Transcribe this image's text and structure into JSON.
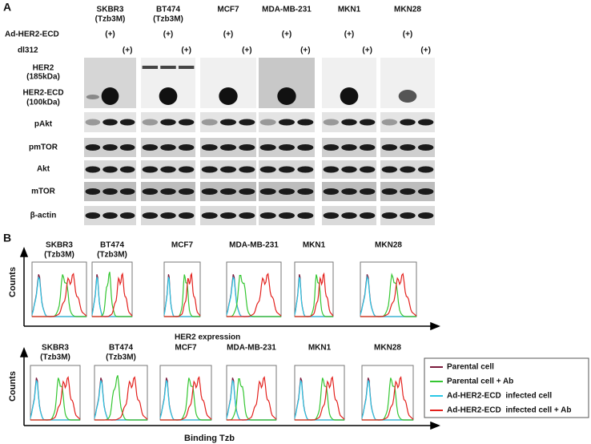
{
  "panel_a": {
    "label": "A",
    "cell_lines": [
      {
        "name": "SKBR3",
        "note": "(Tzb3M)"
      },
      {
        "name": "BT474",
        "note": "(Tzb3M)"
      },
      {
        "name": "MCF7"
      },
      {
        "name": "MDA-MB-231"
      },
      {
        "name": "MKN1"
      },
      {
        "name": "MKN28"
      }
    ],
    "treatments": [
      "Ad-HER2-ECD",
      "dl312"
    ],
    "plus": "(+)",
    "blots": [
      {
        "name": "HER2",
        "note": "(185kDa)"
      },
      {
        "name": "HER2-ECD",
        "note": "(100kDa)"
      },
      {
        "name": "pAkt"
      },
      {
        "name": "pmTOR"
      },
      {
        "name": "Akt"
      },
      {
        "name": "mTOR"
      },
      {
        "name": "β-actin"
      }
    ]
  },
  "panel_b": {
    "label": "B",
    "cell_lines": [
      {
        "name": "SKBR3",
        "note": "(Tzb3M)"
      },
      {
        "name": "BT474",
        "note": "(Tzb3M)"
      },
      {
        "name": "MCF7"
      },
      {
        "name": "MDA-MB-231"
      },
      {
        "name": "MKN1"
      },
      {
        "name": "MKN28"
      }
    ],
    "y_label": "Counts",
    "x_labels": [
      "HER2 expression",
      "Binding Tzb"
    ],
    "legend": [
      {
        "name": "Parental cell",
        "color": "#7b1a3c"
      },
      {
        "name": "Parental cell + Ab",
        "color": "#35c632"
      },
      {
        "name": "Ad-HER2-ECD  infected cell",
        "color": "#2ac8e6"
      },
      {
        "name": "Ad-HER2-ECD  infected cell + Ab",
        "color": "#e3201c"
      }
    ]
  }
}
